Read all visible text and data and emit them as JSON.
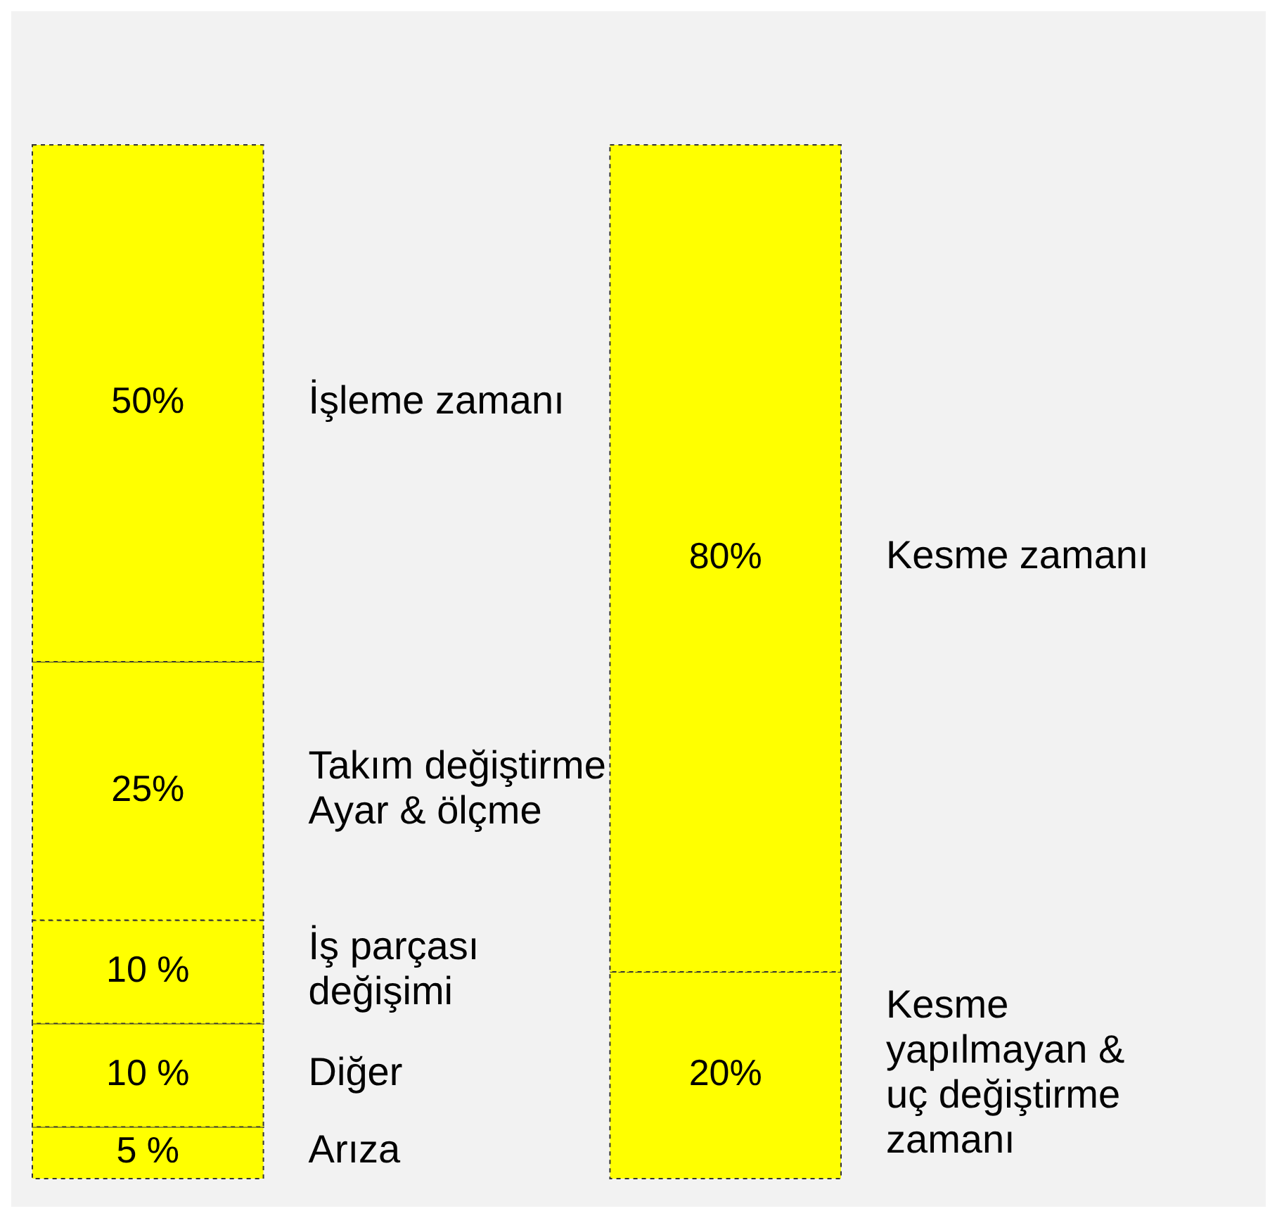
{
  "chart_data": {
    "type": "bar",
    "stacked": true,
    "categories": [
      null,
      null
    ],
    "series": [
      {
        "name": "Arıza",
        "color": "#ffff00",
        "values": [
          5,
          null
        ],
        "value_labels": [
          "5 %",
          null
        ]
      },
      {
        "name": "Diğer",
        "color": "#ffff00",
        "values": [
          10,
          null
        ],
        "value_labels": [
          "10 %",
          null
        ]
      },
      {
        "name": "İş parçası değişimi",
        "color": "#ffff00",
        "values": [
          10,
          null
        ],
        "value_labels": [
          "10 %",
          null
        ]
      },
      {
        "name": "Takım değiştirme Ayar & ölçme",
        "color": "#ffff00",
        "values": [
          25,
          null
        ],
        "value_labels": [
          "25%",
          null
        ]
      },
      {
        "name": "İşleme zamanı",
        "color": "#ffff00",
        "values": [
          50,
          null
        ],
        "value_labels": [
          "50%",
          null
        ]
      },
      {
        "name": "Kesme yapılmayan & uç değiştirme zamanı",
        "color": "#ffff00",
        "values": [
          null,
          20
        ],
        "value_labels": [
          null,
          "20%"
        ]
      },
      {
        "name": "Kesme zamanı",
        "color": "#ffff00",
        "values": [
          null,
          80
        ],
        "value_labels": [
          null,
          "80%"
        ]
      }
    ]
  }
}
